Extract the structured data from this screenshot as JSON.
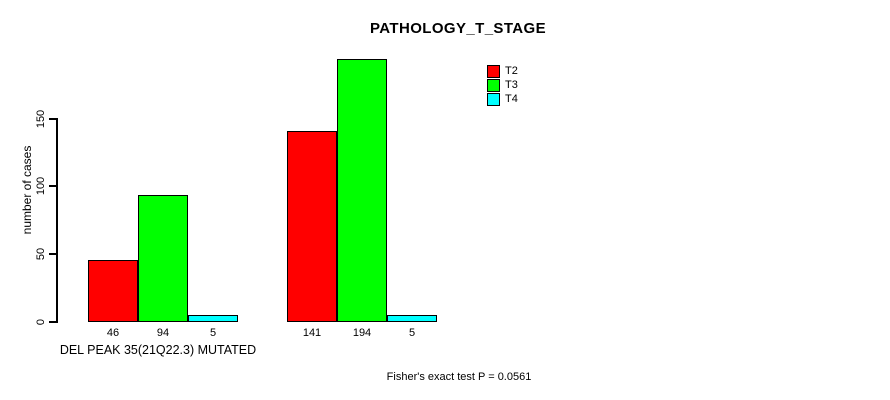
{
  "chart_data": {
    "type": "bar",
    "title": "PATHOLOGY_T_STAGE",
    "ylabel": "number of cases",
    "xlabel": "DEL PEAK 35(21Q22.3) MUTATED",
    "annotation": "Fisher's exact test P = 0.0561",
    "yticks": [
      0,
      50,
      100,
      150
    ],
    "ylim": [
      0,
      203
    ],
    "grid": false,
    "legend_position": "top-right",
    "groups_count": 2,
    "series": [
      {
        "name": "T2",
        "color": "#ff0000",
        "values": [
          46,
          141
        ]
      },
      {
        "name": "T3",
        "color": "#00ff00",
        "values": [
          94,
          194
        ]
      },
      {
        "name": "T4",
        "color": "#00ffff",
        "values": [
          5,
          5
        ]
      }
    ],
    "bar_value_labels": [
      [
        46,
        94,
        5
      ],
      [
        141,
        194,
        5
      ]
    ]
  }
}
